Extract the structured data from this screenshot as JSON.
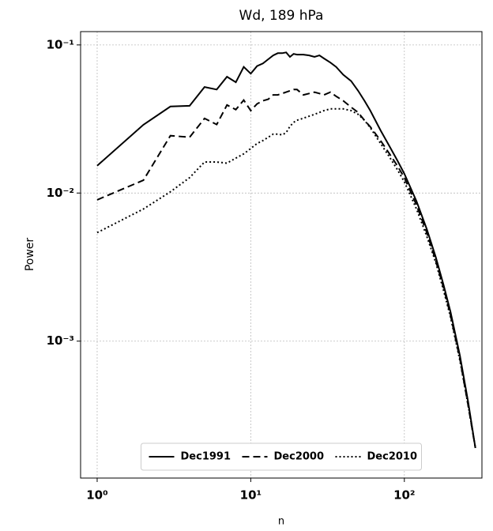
{
  "chart_data": {
    "type": "line",
    "title": "Wd, 189 hPa",
    "x_label": "n",
    "y_label": "Power",
    "x": [
      1,
      2,
      3,
      4,
      5,
      6,
      7,
      8,
      9,
      10,
      11,
      12,
      13,
      14,
      15,
      16,
      17,
      18,
      19,
      20,
      22,
      24,
      26,
      28,
      30,
      33,
      36,
      40,
      45,
      50,
      55,
      60,
      70,
      80,
      90,
      100,
      120,
      140,
      160,
      180,
      200,
      230,
      260,
      290
    ],
    "series": [
      {
        "name": "Dec1991",
        "color": "#000000",
        "linestyle": "solid",
        "values": [
          0.0153,
          0.0289,
          0.0384,
          0.0388,
          0.052,
          0.05,
          0.061,
          0.056,
          0.071,
          0.064,
          0.072,
          0.075,
          0.08,
          0.085,
          0.088,
          0.088,
          0.089,
          0.083,
          0.087,
          0.086,
          0.086,
          0.085,
          0.083,
          0.085,
          0.081,
          0.076,
          0.071,
          0.063,
          0.057,
          0.049,
          0.042,
          0.036,
          0.0265,
          0.0207,
          0.0166,
          0.0135,
          0.0088,
          0.0057,
          0.0037,
          0.0024,
          0.00157,
          0.0008,
          0.00039,
          0.00019
        ]
      },
      {
        "name": "Dec2000",
        "color": "#000000",
        "linestyle": "dashed",
        "values": [
          0.009,
          0.0122,
          0.0244,
          0.0238,
          0.0319,
          0.029,
          0.0393,
          0.0366,
          0.0424,
          0.036,
          0.04,
          0.042,
          0.043,
          0.046,
          0.046,
          0.047,
          0.048,
          0.049,
          0.05,
          0.05,
          0.046,
          0.047,
          0.048,
          0.047,
          0.046,
          0.048,
          0.045,
          0.042,
          0.038,
          0.035,
          0.031,
          0.028,
          0.0226,
          0.0184,
          0.0153,
          0.0127,
          0.0083,
          0.0054,
          0.0035,
          0.0023,
          0.00149,
          0.00076,
          0.00037,
          0.00019
        ]
      },
      {
        "name": "Dec2010",
        "color": "#000000",
        "linestyle": "dotted",
        "values": [
          0.0054,
          0.0078,
          0.0102,
          0.0127,
          0.0162,
          0.0162,
          0.0159,
          0.0172,
          0.0184,
          0.02,
          0.0216,
          0.0226,
          0.0238,
          0.025,
          0.025,
          0.0247,
          0.0256,
          0.0282,
          0.03,
          0.031,
          0.032,
          0.033,
          0.034,
          0.035,
          0.036,
          0.037,
          0.037,
          0.037,
          0.036,
          0.034,
          0.031,
          0.0276,
          0.0216,
          0.0175,
          0.0144,
          0.0119,
          0.0078,
          0.0051,
          0.0034,
          0.0022,
          0.00145,
          0.00074,
          0.00037,
          0.00019
        ]
      }
    ],
    "xscale": "log",
    "yscale": "log",
    "xlim": [
      0.78,
      320
    ],
    "ylim": [
      0.000119,
      0.123
    ],
    "xticks": [
      {
        "value": 1,
        "label": "10⁰"
      },
      {
        "value": 10,
        "label": "10¹"
      },
      {
        "value": 100,
        "label": "10²"
      }
    ],
    "yticks": [
      {
        "value": 0.001,
        "label": "10⁻³"
      },
      {
        "value": 0.01,
        "label": "10⁻²"
      },
      {
        "value": 0.1,
        "label": "10⁻¹"
      }
    ],
    "grid": true,
    "legend": "lower center"
  }
}
